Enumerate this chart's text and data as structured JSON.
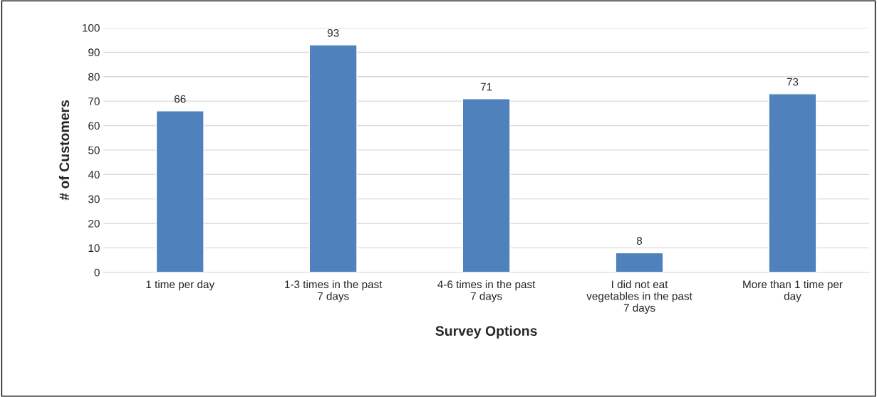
{
  "chart_data": {
    "type": "bar",
    "xlabel": "Survey Options",
    "ylabel": "# of Customers",
    "categories": [
      "1 time per day",
      "1-3 times in the past\n7 days",
      "4-6 times in the past\n7 days",
      "I did not eat\nvegetables in the past\n7 days",
      "More than 1 time per\nday"
    ],
    "values": [
      66,
      93,
      71,
      8,
      73
    ],
    "color": "#4f81bd",
    "ylim": [
      0,
      100
    ],
    "yticks": [
      0,
      10,
      20,
      30,
      40,
      50,
      60,
      70,
      80,
      90,
      100
    ],
    "grid": "y",
    "data_labels": true
  }
}
